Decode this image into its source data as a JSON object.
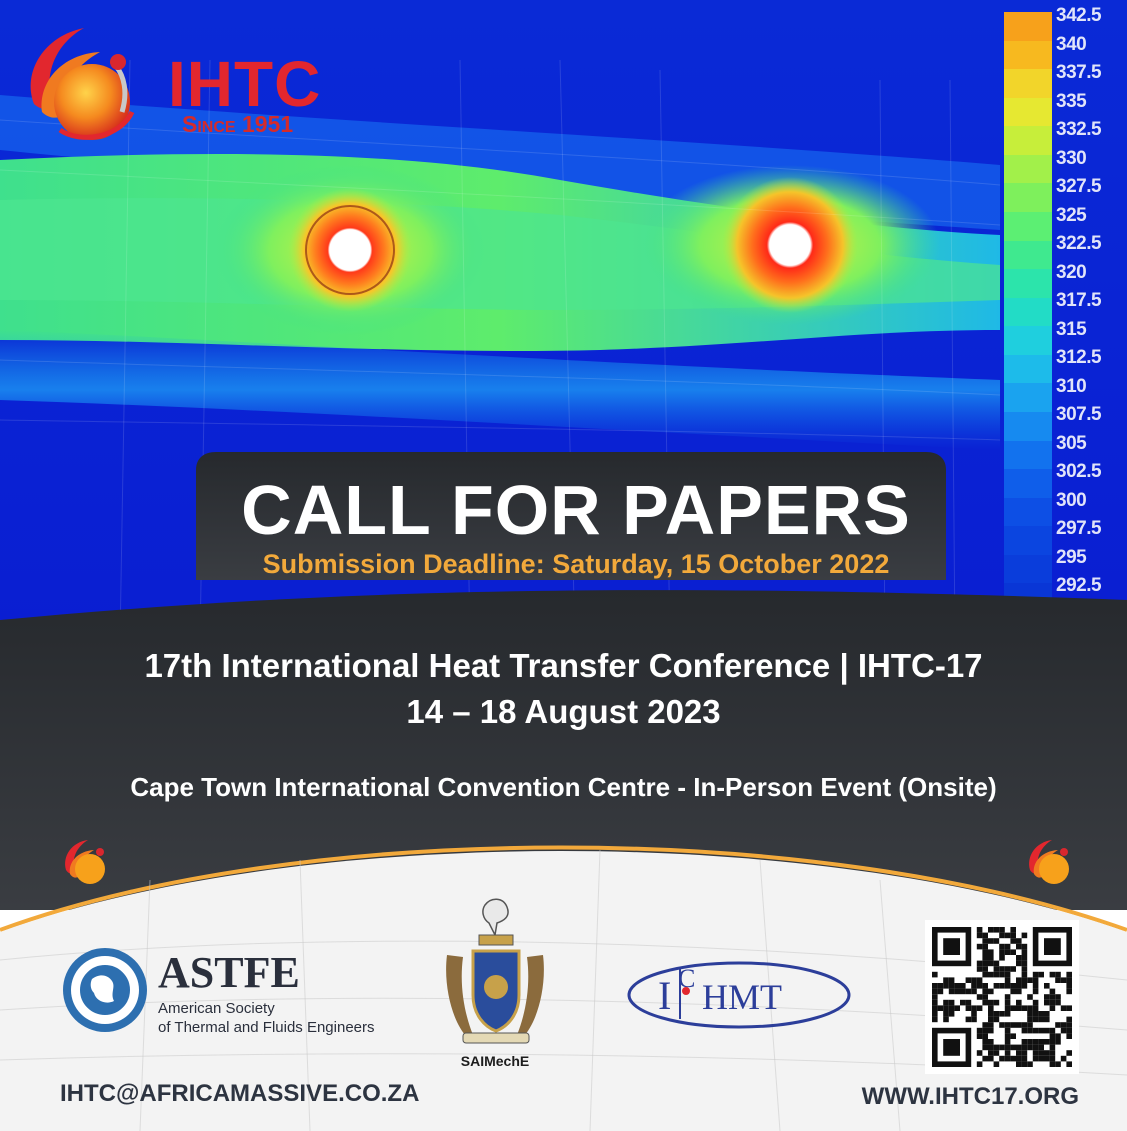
{
  "logo": {
    "text": "IHTC",
    "since": "Since 1951",
    "icon": "ihtc-flame-globe-icon"
  },
  "temperature_scale": {
    "labels": [
      "342.5",
      "340",
      "337.5",
      "335",
      "332.5",
      "330",
      "327.5",
      "325",
      "322.5",
      "320",
      "317.5",
      "315",
      "312.5",
      "310",
      "307.5",
      "305",
      "302.5",
      "300",
      "297.5",
      "295",
      "292.5"
    ],
    "colors": [
      "#f7a11b",
      "#f7b91f",
      "#f2d52a",
      "#e6e831",
      "#c7ee3a",
      "#a2f04a",
      "#7ef05c",
      "#5cef73",
      "#3fe98f",
      "#2ce4ab",
      "#22dcc6",
      "#1fcfde",
      "#1dbbea",
      "#1aa3ef",
      "#168af0",
      "#1272ee",
      "#0f5eea",
      "#0d4fe5",
      "#0b45e0",
      "#0a3ddb",
      "#0936d6"
    ]
  },
  "call_for_papers": {
    "title": "CALL FOR PAPERS",
    "deadline": "Submission Deadline: Saturday, 15 October 2022"
  },
  "conference": {
    "title": "17th International Heat Transfer Conference | IHTC-17",
    "dates": "14 – 18 August 2023",
    "venue": "Cape Town International Convention Centre - In-Person Event (Onsite)"
  },
  "partners": {
    "astfe": {
      "name": "ASTFE",
      "line1": "American Society",
      "line2": "of Thermal and Fluids Engineers",
      "icon": "astfe-globe-seal-icon"
    },
    "saimeche": {
      "name": "SAIMechE",
      "icon": "saimeche-coat-of-arms-icon"
    },
    "ichmt": {
      "icon": "ichmt-ellipse-logo-icon"
    }
  },
  "qr": {
    "icon": "qr-code-icon"
  },
  "contact": {
    "email": "IHTC@AFRICAMASSIVE.CO.ZA",
    "website": "WWW.IHTC17.ORG"
  },
  "colors": {
    "dark_band": "#2f3237",
    "accent_orange": "#f2a93b",
    "logo_red": "#e2272e",
    "field_blue": "#0a24d8"
  }
}
